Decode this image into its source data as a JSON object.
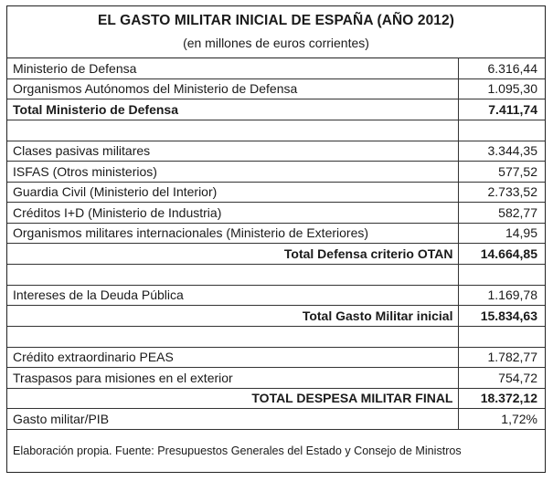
{
  "title": "EL GASTO MILITAR INICIAL DE ESPAÑA (AÑO 2012)",
  "subtitle": "(en millones de euros corrientes)",
  "rows": [
    {
      "label": "Ministerio de Defensa",
      "value": "6.316,44"
    },
    {
      "label": "Organismos Autónomos del Ministerio de Defensa",
      "value": "1.095,30"
    },
    {
      "label": "Total Ministerio de Defensa",
      "value": "7.411,74"
    },
    {
      "label": "",
      "value": ""
    },
    {
      "label": "Clases pasivas militares",
      "value": "3.344,35"
    },
    {
      "label": "ISFAS (Otros ministerios)",
      "value": "577,52"
    },
    {
      "label": "Guardia Civil (Ministerio del Interior)",
      "value": "2.733,52"
    },
    {
      "label": "Créditos I+D (Ministerio de Industria)",
      "value": "582,77"
    },
    {
      "label": "Organismos militares internacionales (Ministerio de Exteriores)",
      "value": "14,95"
    },
    {
      "label": "Total Defensa criterio OTAN",
      "value": "14.664,85"
    },
    {
      "label": "",
      "value": ""
    },
    {
      "label": "Intereses de la Deuda Pública",
      "value": "1.169,78"
    },
    {
      "label": "Total Gasto Militar inicial",
      "value": "15.834,63"
    },
    {
      "label": "",
      "value": ""
    },
    {
      "label": "Crédito extraordinario PEAS",
      "value": "1.782,77"
    },
    {
      "label": "Traspasos para misiones en el exterior",
      "value": "754,72"
    },
    {
      "label": "TOTAL DESPESA MILITAR FINAL",
      "value": "18.372,12"
    },
    {
      "label": "Gasto militar/PIB",
      "value": "1,72%"
    }
  ],
  "footer": "Elaboración propia. Fuente: Presupuestos Generales del Estado y Consejo de Ministros"
}
